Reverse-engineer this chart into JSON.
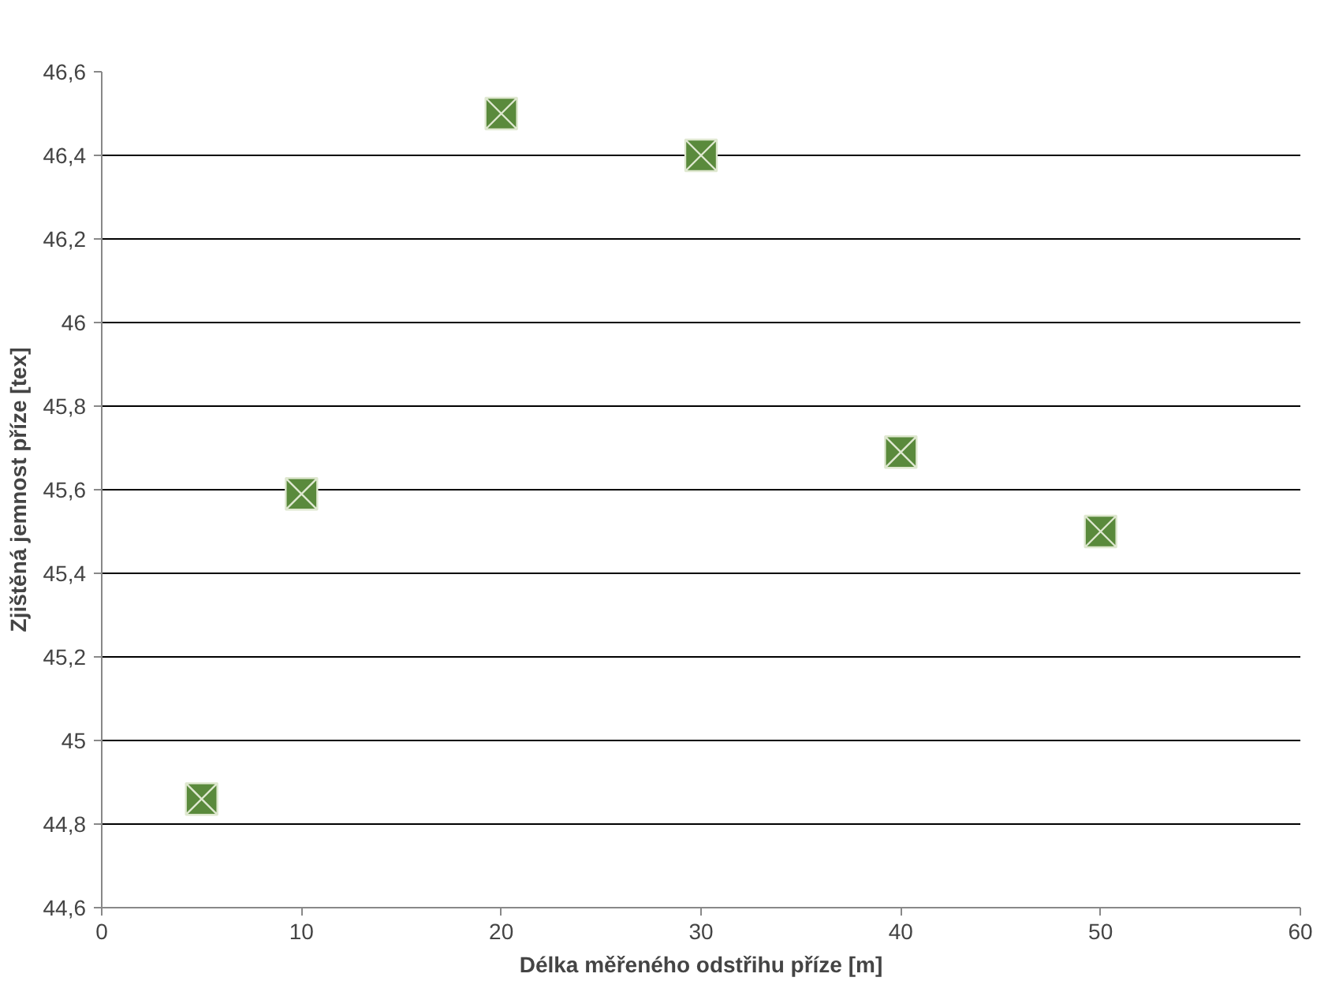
{
  "chart_data": {
    "type": "scatter",
    "xlabel": "Délka měřeného odstřihu příze [m]",
    "ylabel": "Zjištěná jemnost příze [tex]",
    "x": [
      5,
      10,
      20,
      30,
      40,
      50
    ],
    "series": [
      {
        "color": "#5a8a3c",
        "values": [
          44.86,
          45.59,
          46.5,
          46.4,
          45.69,
          45.5
        ]
      }
    ],
    "xlim": [
      0,
      60
    ],
    "xticks": [
      0,
      10,
      20,
      30,
      40,
      50,
      60
    ],
    "ylim": [
      44.6,
      46.6
    ],
    "yticks": [
      {
        "value": 44.6,
        "label": "44,6"
      },
      {
        "value": 44.8,
        "label": "44,8"
      },
      45,
      {
        "value": 45.2,
        "label": "45,2"
      },
      {
        "value": 45.4,
        "label": "45,4"
      },
      {
        "value": 45.6,
        "label": "45,6"
      },
      {
        "value": 45.8,
        "label": "45,8"
      },
      46,
      {
        "value": 46.2,
        "label": "46,2"
      },
      {
        "value": 46.4,
        "label": "46,4"
      },
      {
        "value": 46.6,
        "label": "46,6"
      }
    ],
    "grid": "y",
    "marker": "square"
  }
}
